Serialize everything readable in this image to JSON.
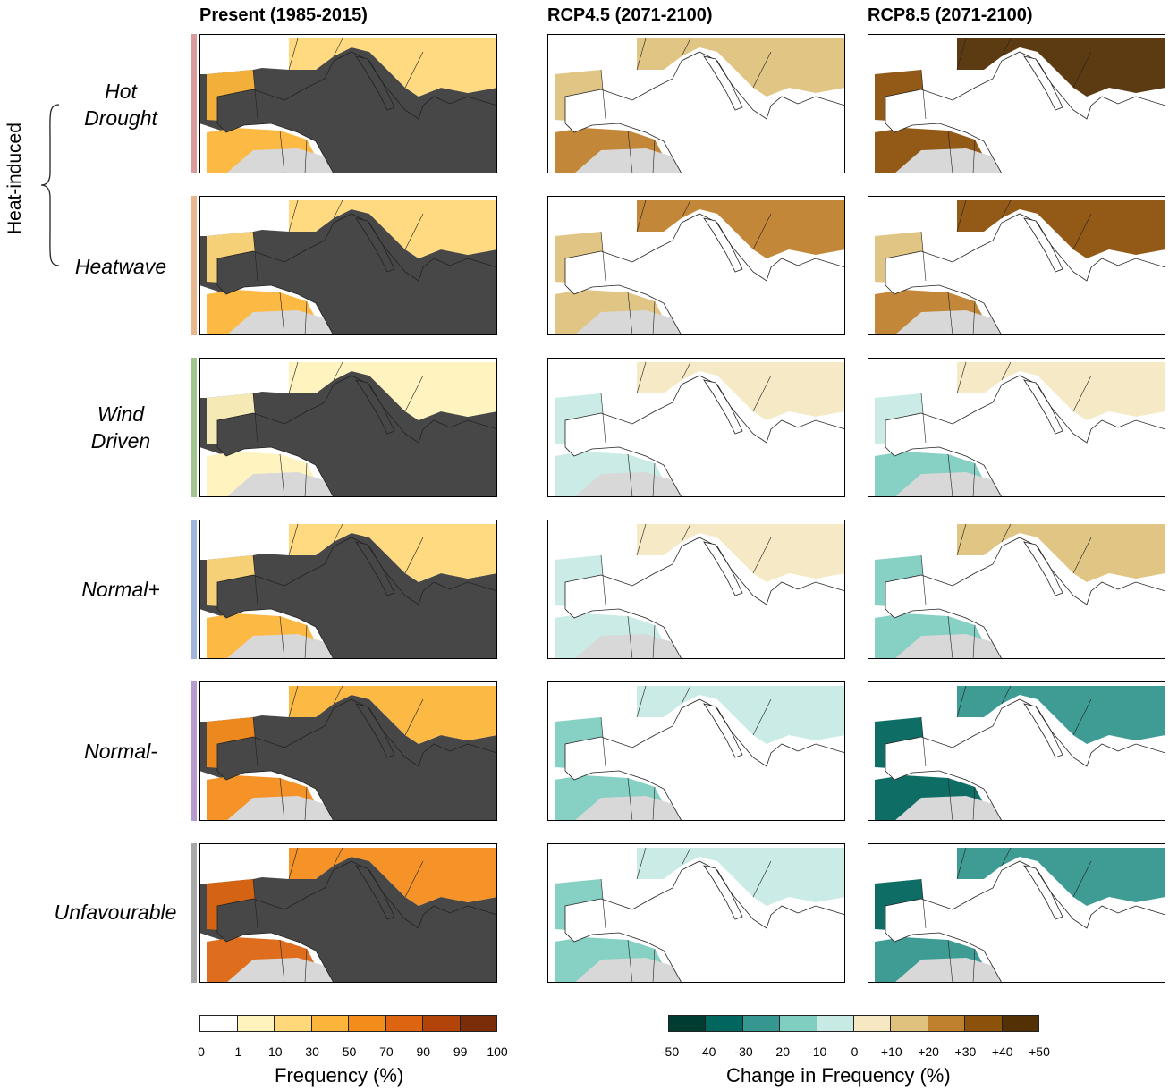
{
  "columns": [
    {
      "title": "Present (1985-2015)"
    },
    {
      "title": "RCP4.5 (2071-2100)"
    },
    {
      "title": "RCP8.5 (2071-2100)"
    }
  ],
  "group_label": "Heat-induced",
  "rows": [
    {
      "label_line1": "Hot",
      "label_line2": "Drought",
      "strip_color": "#d99a9c"
    },
    {
      "label_line1": "",
      "label_line2": "Heatwave",
      "strip_color": "#e8b78f"
    },
    {
      "label_line1": "Wind",
      "label_line2": "Driven",
      "strip_color": "#9fc48e"
    },
    {
      "label_line1": "",
      "label_line2": "Normal+",
      "strip_color": "#9fb5dc"
    },
    {
      "label_line1": "",
      "label_line2": "Normal-",
      "strip_color": "#b79bcc"
    },
    {
      "label_line1": "",
      "label_line2": "Unfavourable",
      "strip_color": "#a8a8a8"
    }
  ],
  "chart_data": {
    "type": "heatmap",
    "panels_layout": "6 rows x 3 columns of Mediterranean maps",
    "present_frequency_class_index": [
      [
        3,
        2,
        3
      ],
      [
        2,
        2,
        3
      ],
      [
        1,
        1,
        1
      ],
      [
        2,
        2,
        3
      ],
      [
        4,
        3,
        4
      ],
      [
        5,
        4,
        5
      ]
    ],
    "rcp45_change_class_index": [
      [
        6,
        6,
        7
      ],
      [
        6,
        7,
        6
      ],
      [
        4,
        5,
        4
      ],
      [
        4,
        5,
        4
      ],
      [
        3,
        4,
        3
      ],
      [
        3,
        4,
        3
      ]
    ],
    "rcp85_change_class_index": [
      [
        8,
        9,
        8
      ],
      [
        6,
        8,
        7
      ],
      [
        4,
        5,
        3
      ],
      [
        3,
        6,
        3
      ],
      [
        1,
        2,
        1
      ],
      [
        1,
        2,
        2
      ]
    ],
    "frequency_legend": {
      "title": "Frequency (%)",
      "ticks": [
        "0",
        "1",
        "10",
        "30",
        "50",
        "70",
        "90",
        "99",
        "100"
      ],
      "colors": [
        "#ffffff",
        "#fff3bd",
        "#ffd87a",
        "#fcb53a",
        "#f48c1c",
        "#dd6512",
        "#b24409",
        "#7a2d07"
      ]
    },
    "change_legend": {
      "title": "Change in Frequency (%)",
      "ticks": [
        "-50",
        "-40",
        "-30",
        "-20",
        "-10",
        "0",
        "+10",
        "+20",
        "+30",
        "+40",
        "+50"
      ],
      "colors": [
        "#003c30",
        "#01665e",
        "#35978f",
        "#80cdc1",
        "#c7eae5",
        "#f6e8c3",
        "#dfc27d",
        "#bf812d",
        "#8c510a",
        "#543005"
      ]
    },
    "colors": {
      "sea_present": "#474747",
      "sea_future": "#ffffff",
      "masked_land": "#d8d8d8",
      "borders": "#222222"
    }
  }
}
